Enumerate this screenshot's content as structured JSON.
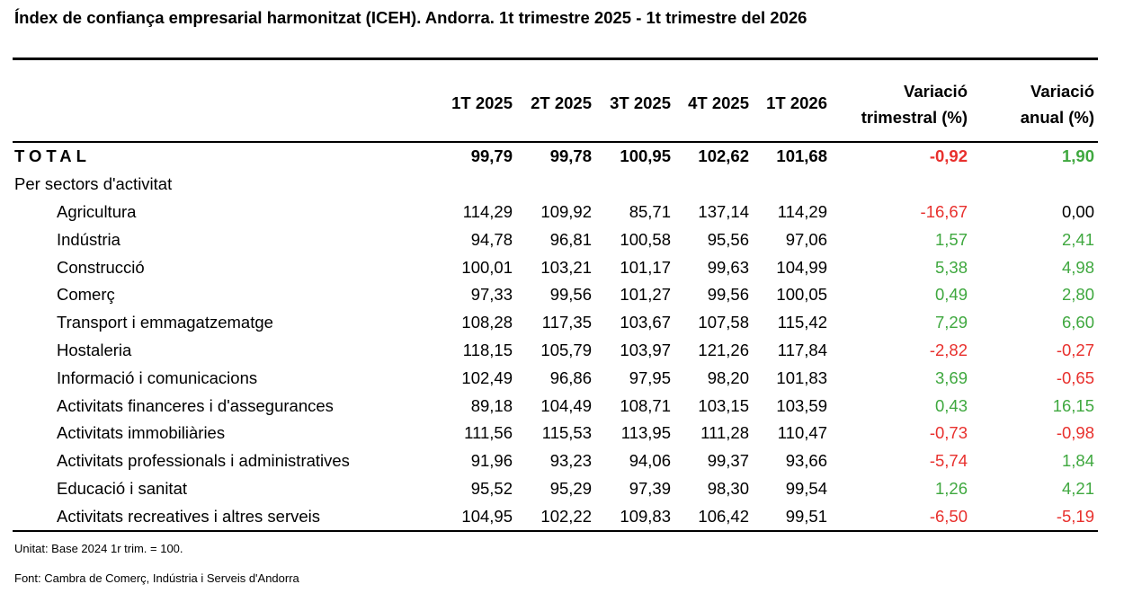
{
  "title": "Índex de confiança empresarial harmonitzat (ICEH). Andorra. 1t trimestre 2025 - 1t trimestre del 2026",
  "columns": {
    "q1": "1T 2025",
    "q2": "2T 2025",
    "q3": "3T 2025",
    "q4": "4T 2025",
    "q5": "1T 2026",
    "var_tri_line1": "Variació",
    "var_tri_line2": "trimestral (%)",
    "var_anu_line1": "Variació",
    "var_anu_line2": "anual (%)"
  },
  "total": {
    "label": "TOTAL",
    "values": [
      "99,79",
      "99,78",
      "100,95",
      "102,62",
      "101,68"
    ],
    "var_tri": "-0,92",
    "var_anu": "1,90"
  },
  "section_label": "Per sectors d'activitat",
  "rows": [
    {
      "label": "Agricultura",
      "values": [
        "114,29",
        "109,92",
        "85,71",
        "137,14",
        "114,29"
      ],
      "var_tri": "-16,67",
      "var_anu": "0,00"
    },
    {
      "label": "Indústria",
      "values": [
        "94,78",
        "96,81",
        "100,58",
        "95,56",
        "97,06"
      ],
      "var_tri": "1,57",
      "var_anu": "2,41"
    },
    {
      "label": "Construcció",
      "values": [
        "100,01",
        "103,21",
        "101,17",
        "99,63",
        "104,99"
      ],
      "var_tri": "5,38",
      "var_anu": "4,98"
    },
    {
      "label": "Comerç",
      "values": [
        "97,33",
        "99,56",
        "101,27",
        "99,56",
        "100,05"
      ],
      "var_tri": "0,49",
      "var_anu": "2,80"
    },
    {
      "label": "Transport i emmagatzematge",
      "values": [
        "108,28",
        "117,35",
        "103,67",
        "107,58",
        "115,42"
      ],
      "var_tri": "7,29",
      "var_anu": "6,60"
    },
    {
      "label": "Hostaleria",
      "values": [
        "118,15",
        "105,79",
        "103,97",
        "121,26",
        "117,84"
      ],
      "var_tri": "-2,82",
      "var_anu": "-0,27"
    },
    {
      "label": "Informació i comunicacions",
      "values": [
        "102,49",
        "96,86",
        "97,95",
        "98,20",
        "101,83"
      ],
      "var_tri": "3,69",
      "var_anu": "-0,65"
    },
    {
      "label": "Activitats financeres i d'assegurances",
      "values": [
        "89,18",
        "104,49",
        "108,71",
        "103,15",
        "103,59"
      ],
      "var_tri": "0,43",
      "var_anu": "16,15"
    },
    {
      "label": "Activitats immobiliàries",
      "values": [
        "111,56",
        "115,53",
        "113,95",
        "111,28",
        "110,47"
      ],
      "var_tri": "-0,73",
      "var_anu": "-0,98"
    },
    {
      "label": "Activitats professionals i administratives",
      "values": [
        "91,96",
        "93,23",
        "94,06",
        "99,37",
        "93,66"
      ],
      "var_tri": "-5,74",
      "var_anu": "1,84"
    },
    {
      "label": "Educació i sanitat",
      "values": [
        "95,52",
        "95,29",
        "97,39",
        "98,30",
        "99,54"
      ],
      "var_tri": "1,26",
      "var_anu": "4,21"
    },
    {
      "label": "Activitats recreatives i altres serveis",
      "values": [
        "104,95",
        "102,22",
        "109,83",
        "106,42",
        "99,51"
      ],
      "var_tri": "-6,50",
      "var_anu": "-5,19"
    }
  ],
  "notes": {
    "unit": "Unitat: Base 2024 1r trim. = 100.",
    "source": "Font: Cambra de Comerç, Indústria i Serveis d'Andorra"
  },
  "colors": {
    "positive": "#3fa83f",
    "negative": "#e8302d"
  }
}
